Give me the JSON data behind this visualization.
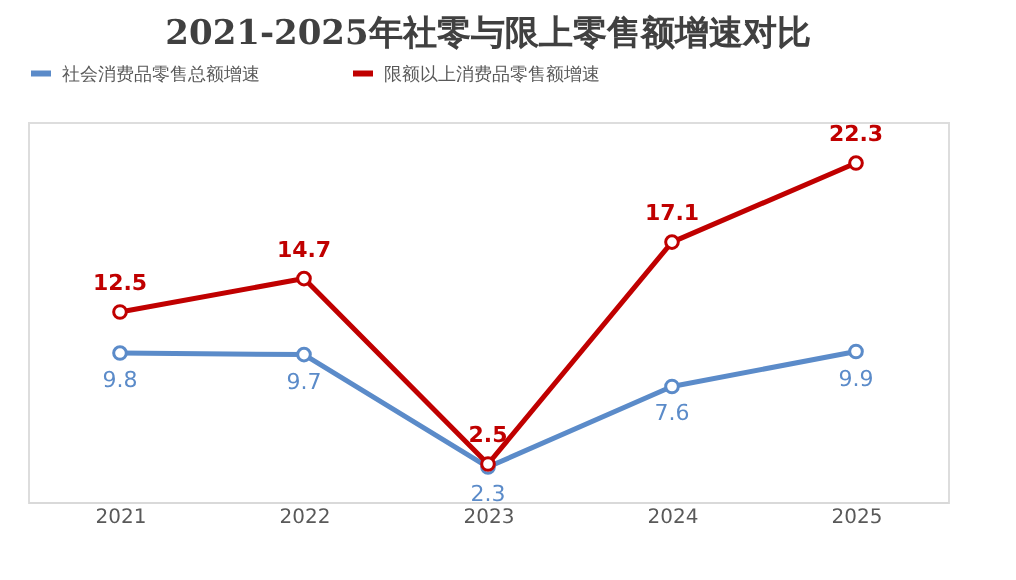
{
  "chart_data": {
    "type": "line",
    "title": "2021-2025年社零与限上零售额增速对比",
    "categories": [
      "2021",
      "2022",
      "2023",
      "2024",
      "2025"
    ],
    "series": [
      {
        "name": "社会消费品零售总额增速",
        "color": "#5b8bc9",
        "values": [
          9.8,
          9.7,
          2.3,
          7.6,
          9.9
        ]
      },
      {
        "name": "限额以上消费品零售额增速",
        "color": "#c00000",
        "values": [
          12.5,
          14.7,
          2.5,
          17.1,
          22.3
        ]
      }
    ],
    "ylim": [
      0,
      25
    ],
    "tick_labels": "x",
    "data_labels": true,
    "legend": "top",
    "marker": "circle",
    "line_style": "solid",
    "grid": false
  }
}
